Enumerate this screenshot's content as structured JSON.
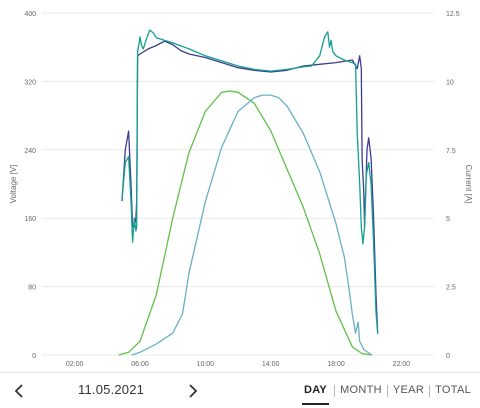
{
  "chart_data": {
    "type": "line",
    "y_left_label": "Voltage [V]",
    "y_right_label": "Current [A]",
    "y_left_range": [
      0,
      400
    ],
    "y_right_range": [
      0,
      12.5
    ],
    "y_left_ticks": [
      "0",
      "80",
      "160",
      "240",
      "320",
      "400"
    ],
    "y_right_ticks": [
      "0",
      "2.5",
      "5",
      "7.5",
      "10",
      "12.5"
    ],
    "x_range": [
      0,
      24
    ],
    "x_ticks": [
      {
        "value": 2,
        "label": "02:00"
      },
      {
        "value": 6,
        "label": "06:00"
      },
      {
        "value": 10,
        "label": "10:00"
      },
      {
        "value": 14,
        "label": "14:00"
      },
      {
        "value": 18,
        "label": "18:00"
      },
      {
        "value": 22,
        "label": "22:00"
      }
    ],
    "grid": true,
    "series": [
      {
        "axis": "left",
        "color": "#3d3d91",
        "points": [
          [
            4.9,
            180
          ],
          [
            5.1,
            240
          ],
          [
            5.3,
            262
          ],
          [
            5.45,
            200
          ],
          [
            5.55,
            150
          ],
          [
            5.65,
            150
          ],
          [
            5.75,
            160
          ],
          [
            5.8,
            180
          ],
          [
            5.85,
            350
          ],
          [
            6,
            352
          ],
          [
            6.5,
            358
          ],
          [
            7,
            362
          ],
          [
            7.5,
            367
          ],
          [
            8,
            363
          ],
          [
            8.5,
            356
          ],
          [
            9,
            352
          ],
          [
            10,
            348
          ],
          [
            11,
            342
          ],
          [
            12,
            336
          ],
          [
            13,
            333
          ],
          [
            14,
            331
          ],
          [
            15,
            333
          ],
          [
            16,
            338
          ],
          [
            17,
            340
          ],
          [
            18,
            342
          ],
          [
            19,
            345
          ],
          [
            19.3,
            335
          ],
          [
            19.45,
            350
          ],
          [
            19.55,
            335
          ],
          [
            19.6,
            230
          ],
          [
            19.7,
            190
          ],
          [
            19.75,
            150
          ],
          [
            19.8,
            180
          ],
          [
            19.9,
            240
          ],
          [
            20,
            254
          ],
          [
            20.15,
            230
          ],
          [
            20.3,
            160
          ],
          [
            20.45,
            70
          ],
          [
            20.55,
            25
          ]
        ]
      },
      {
        "axis": "left",
        "color": "#14a090",
        "points": [
          [
            4.9,
            182
          ],
          [
            5.1,
            225
          ],
          [
            5.3,
            232
          ],
          [
            5.45,
            180
          ],
          [
            5.55,
            132
          ],
          [
            5.65,
            160
          ],
          [
            5.75,
            145
          ],
          [
            5.8,
            150
          ],
          [
            5.85,
            355
          ],
          [
            5.95,
            365
          ],
          [
            6,
            372
          ],
          [
            6.1,
            362
          ],
          [
            6.2,
            358
          ],
          [
            6.4,
            370
          ],
          [
            6.6,
            380
          ],
          [
            6.8,
            377
          ],
          [
            7,
            371
          ],
          [
            8,
            365
          ],
          [
            9,
            358
          ],
          [
            10,
            350
          ],
          [
            11,
            344
          ],
          [
            12,
            338
          ],
          [
            13,
            334
          ],
          [
            14,
            332
          ],
          [
            15,
            334
          ],
          [
            16,
            337
          ],
          [
            16.5,
            338
          ],
          [
            17,
            350
          ],
          [
            17.3,
            372
          ],
          [
            17.5,
            378
          ],
          [
            17.6,
            360
          ],
          [
            17.7,
            368
          ],
          [
            17.8,
            355
          ],
          [
            18,
            350
          ],
          [
            18.5,
            345
          ],
          [
            19,
            342
          ],
          [
            19.2,
            340
          ],
          [
            19.3,
            260
          ],
          [
            19.45,
            200
          ],
          [
            19.55,
            150
          ],
          [
            19.65,
            130
          ],
          [
            19.75,
            150
          ],
          [
            19.85,
            210
          ],
          [
            20,
            225
          ],
          [
            20.15,
            200
          ],
          [
            20.3,
            130
          ],
          [
            20.45,
            50
          ],
          [
            20.55,
            25
          ]
        ]
      },
      {
        "axis": "right",
        "color": "#5fc04a",
        "points": [
          [
            4.7,
            0
          ],
          [
            5.3,
            0.1
          ],
          [
            6,
            0.5
          ],
          [
            7,
            2.2
          ],
          [
            8,
            5
          ],
          [
            9,
            7.4
          ],
          [
            10,
            8.9
          ],
          [
            11,
            9.6
          ],
          [
            11.5,
            9.65
          ],
          [
            12,
            9.6
          ],
          [
            13,
            9.2
          ],
          [
            14,
            8.2
          ],
          [
            15,
            6.8
          ],
          [
            16,
            5.4
          ],
          [
            17,
            3.7
          ],
          [
            18,
            1.6
          ],
          [
            19,
            0.3
          ],
          [
            19.6,
            0.05
          ],
          [
            20.2,
            0
          ]
        ]
      },
      {
        "axis": "right",
        "color": "#68b0c8",
        "points": [
          [
            5.5,
            0
          ],
          [
            6,
            0.1
          ],
          [
            7,
            0.4
          ],
          [
            8,
            0.8
          ],
          [
            8.6,
            1.5
          ],
          [
            9,
            3
          ],
          [
            10,
            5.6
          ],
          [
            11,
            7.6
          ],
          [
            12,
            8.9
          ],
          [
            13,
            9.4
          ],
          [
            13.5,
            9.5
          ],
          [
            14,
            9.5
          ],
          [
            14.5,
            9.4
          ],
          [
            15,
            9.1
          ],
          [
            16,
            8.1
          ],
          [
            17,
            6.7
          ],
          [
            18,
            4.8
          ],
          [
            18.5,
            3.6
          ],
          [
            18.8,
            2.4
          ],
          [
            19,
            1.5
          ],
          [
            19.2,
            0.8
          ],
          [
            19.35,
            1.2
          ],
          [
            19.45,
            0.5
          ],
          [
            19.7,
            0.2
          ],
          [
            20.2,
            0
          ]
        ]
      }
    ]
  },
  "date_label": "11.05.2021",
  "tabs": [
    {
      "label": "DAY",
      "active": true
    },
    {
      "label": "MONTH",
      "active": false
    },
    {
      "label": "YEAR",
      "active": false
    },
    {
      "label": "TOTAL",
      "active": false
    }
  ],
  "icons": {
    "prev": "chevron-left-icon",
    "next": "chevron-right-icon"
  }
}
